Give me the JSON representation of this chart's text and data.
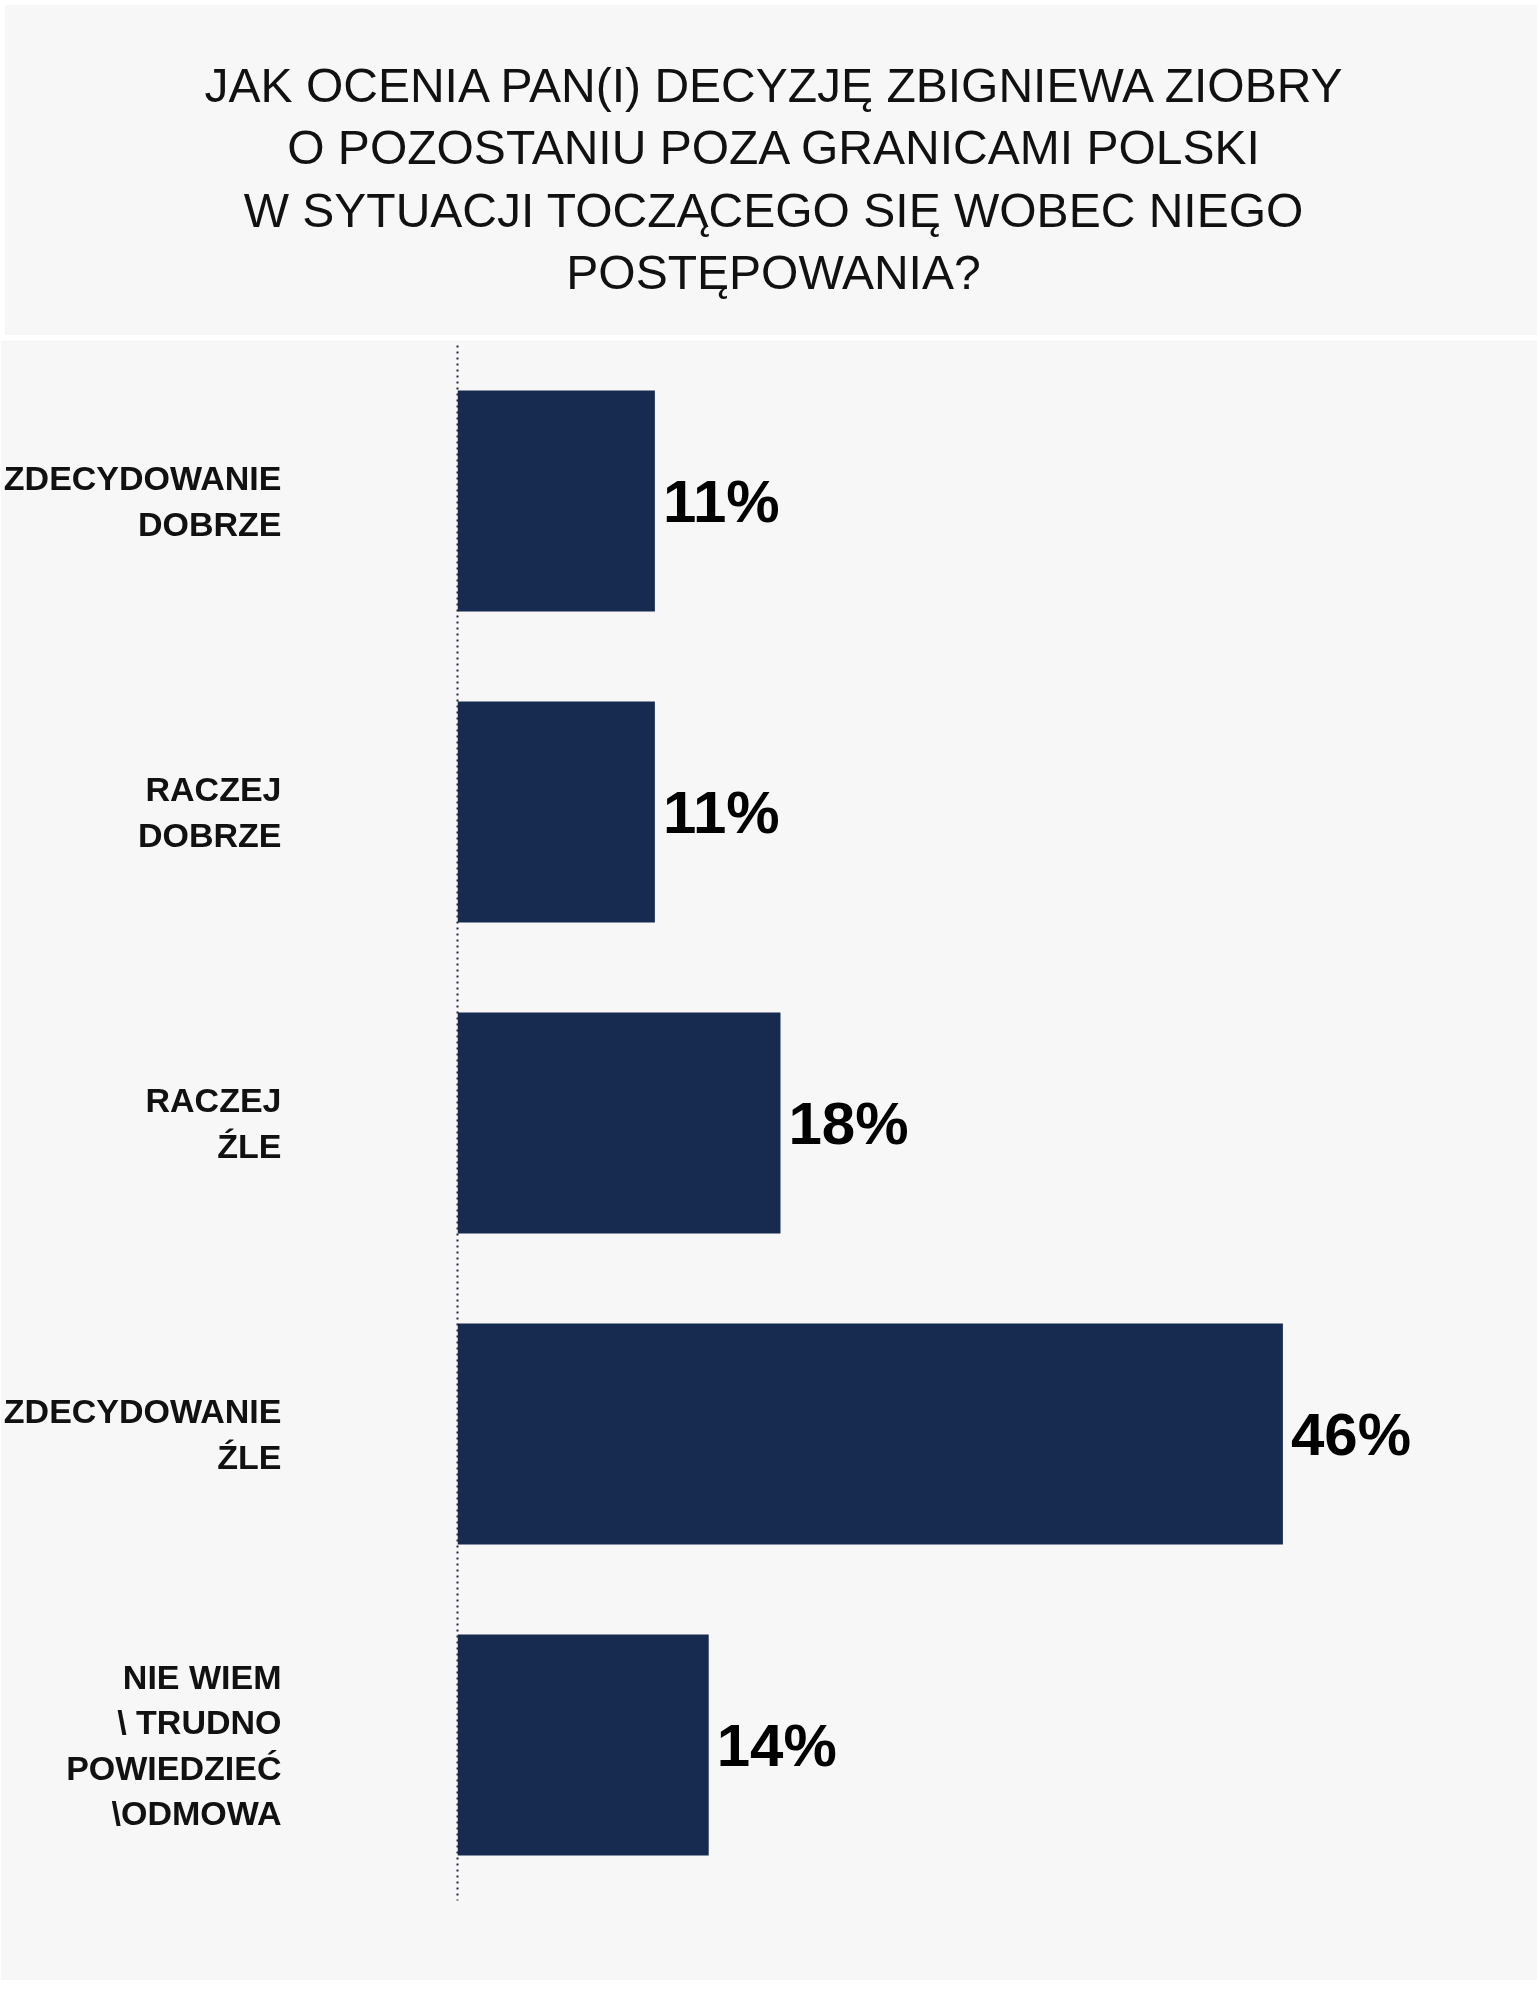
{
  "chart_data": {
    "type": "bar",
    "orientation": "horizontal",
    "title": "JAK OCENIA PAN(I) DECYZJĘ ZBIGNIEWA ZIOBRY\nO POZOSTANIU POZA GRANICAMI POLSKI\nW SYTUACJI TOCZĄCEGO SIĘ WOBEC NIEGO\nPOSTĘPOWANIA?",
    "categories": [
      "ZDECYDOWANIE\nDOBRZE",
      "RACZEJ\nDOBRZE",
      "RACZEJ\nŹLE",
      "ZDECYDOWANIE\nŹLE",
      "NIE WIEM\n\\ TRUDNO\nPOWIEDZIEĆ\n\\ODMOWA"
    ],
    "values": [
      11,
      11,
      18,
      46,
      14
    ],
    "value_labels": [
      "11%",
      "11%",
      "18%",
      "46%",
      "14%"
    ],
    "color": "#172a4f",
    "grid": false
  }
}
